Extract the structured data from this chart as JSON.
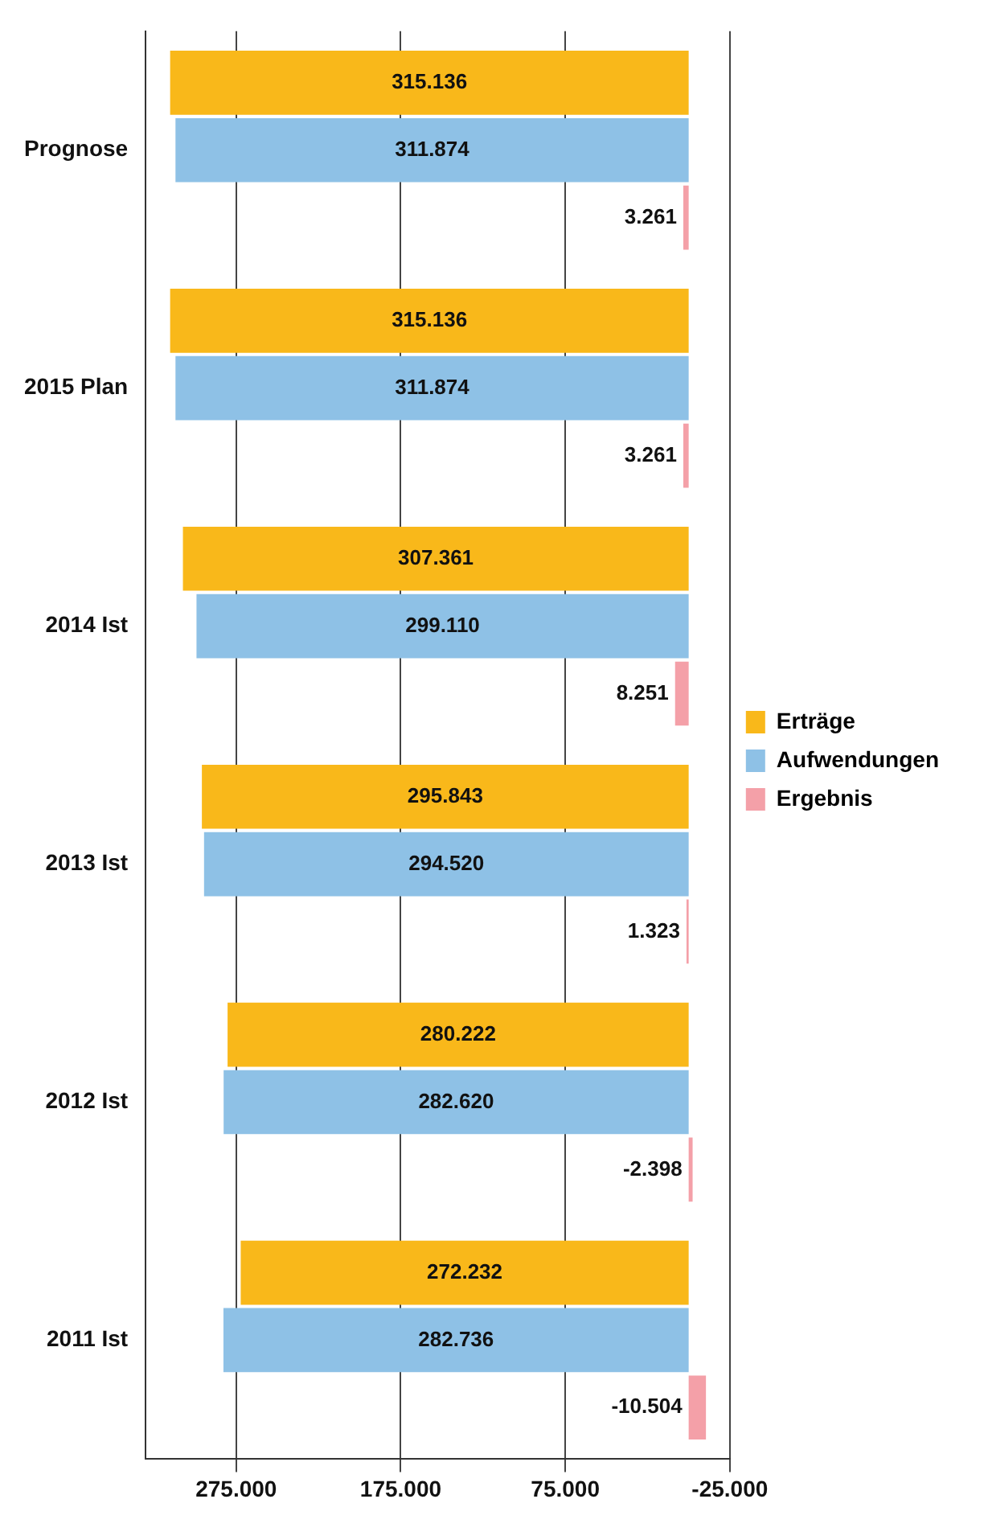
{
  "chart_data": {
    "type": "bar",
    "orientation": "horizontal",
    "categories": [
      "Prognose",
      "2015 Plan",
      "2014 Ist",
      "2013 Ist",
      "2012 Ist",
      "2011 Ist"
    ],
    "series": [
      {
        "name": "Erträge",
        "color": "#f9b81a",
        "values": [
          315136,
          315136,
          307361,
          295843,
          280222,
          272232
        ],
        "value_labels": [
          "315.136",
          "315.136",
          "307.361",
          "295.843",
          "280.222",
          "272.232"
        ]
      },
      {
        "name": "Aufwendungen",
        "color": "#8ec1e6",
        "values": [
          311874,
          311874,
          299110,
          294520,
          282620,
          282736
        ],
        "value_labels": [
          "311.874",
          "311.874",
          "299.110",
          "294.520",
          "282.620",
          "282.736"
        ]
      },
      {
        "name": "Ergebnis",
        "color": "#f4a0a8",
        "values": [
          3261,
          3261,
          8251,
          1323,
          -2398,
          -10504
        ],
        "value_labels": [
          "3.261",
          "3.261",
          "8.251",
          "1.323",
          "-2.398",
          "-10.504"
        ]
      }
    ],
    "xlim": [
      330000,
      -25000
    ],
    "xticks": [
      {
        "value": 275000,
        "label": "275.000"
      },
      {
        "value": 175000,
        "label": "175.000"
      },
      {
        "value": 75000,
        "label": "75.000"
      },
      {
        "value": -25000,
        "label": "-25.000"
      }
    ],
    "grid": "x",
    "legend": "right"
  }
}
